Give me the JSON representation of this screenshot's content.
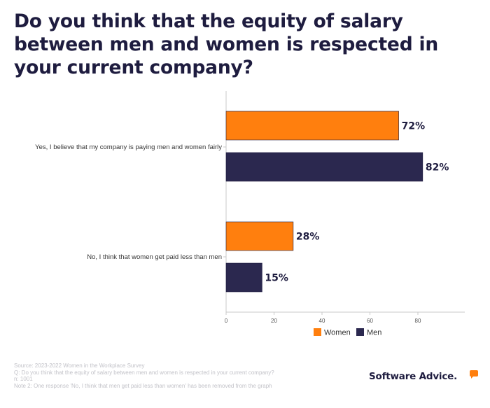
{
  "title": "Do you think that the equity of salary between men and women is respected in your current company?",
  "chart_data": {
    "type": "bar",
    "orientation": "horizontal",
    "categories": [
      "Yes, I believe that my company is paying men and women fairly",
      "No, I think that women get paid less than men"
    ],
    "series": [
      {
        "name": "Women",
        "values": [
          72,
          28
        ],
        "labels": [
          "72%",
          "28%"
        ],
        "color": "#ff7f0e"
      },
      {
        "name": "Men",
        "values": [
          82,
          15
        ],
        "labels": [
          "82%",
          "15%"
        ],
        "color": "#2b284f"
      }
    ],
    "xlim": [
      0,
      100
    ],
    "xticks": [
      0,
      20,
      40,
      60,
      80
    ],
    "xlabel": "",
    "ylabel": "",
    "grid": false,
    "legend_position": "bottom"
  },
  "footer": {
    "source": "Source: 2023-2022 Women in the Workplace Survey",
    "question": "Q: Do you think that the equity of salary between men and women is respected in your current company?",
    "n": "n: 1001",
    "note": "Note 2: One response 'No, I think that men get paid less than women' has been removed from the graph"
  },
  "brand": {
    "name": "Software Advice.",
    "accent": "#ff7f0e",
    "text_color": "#1e1c3f"
  }
}
